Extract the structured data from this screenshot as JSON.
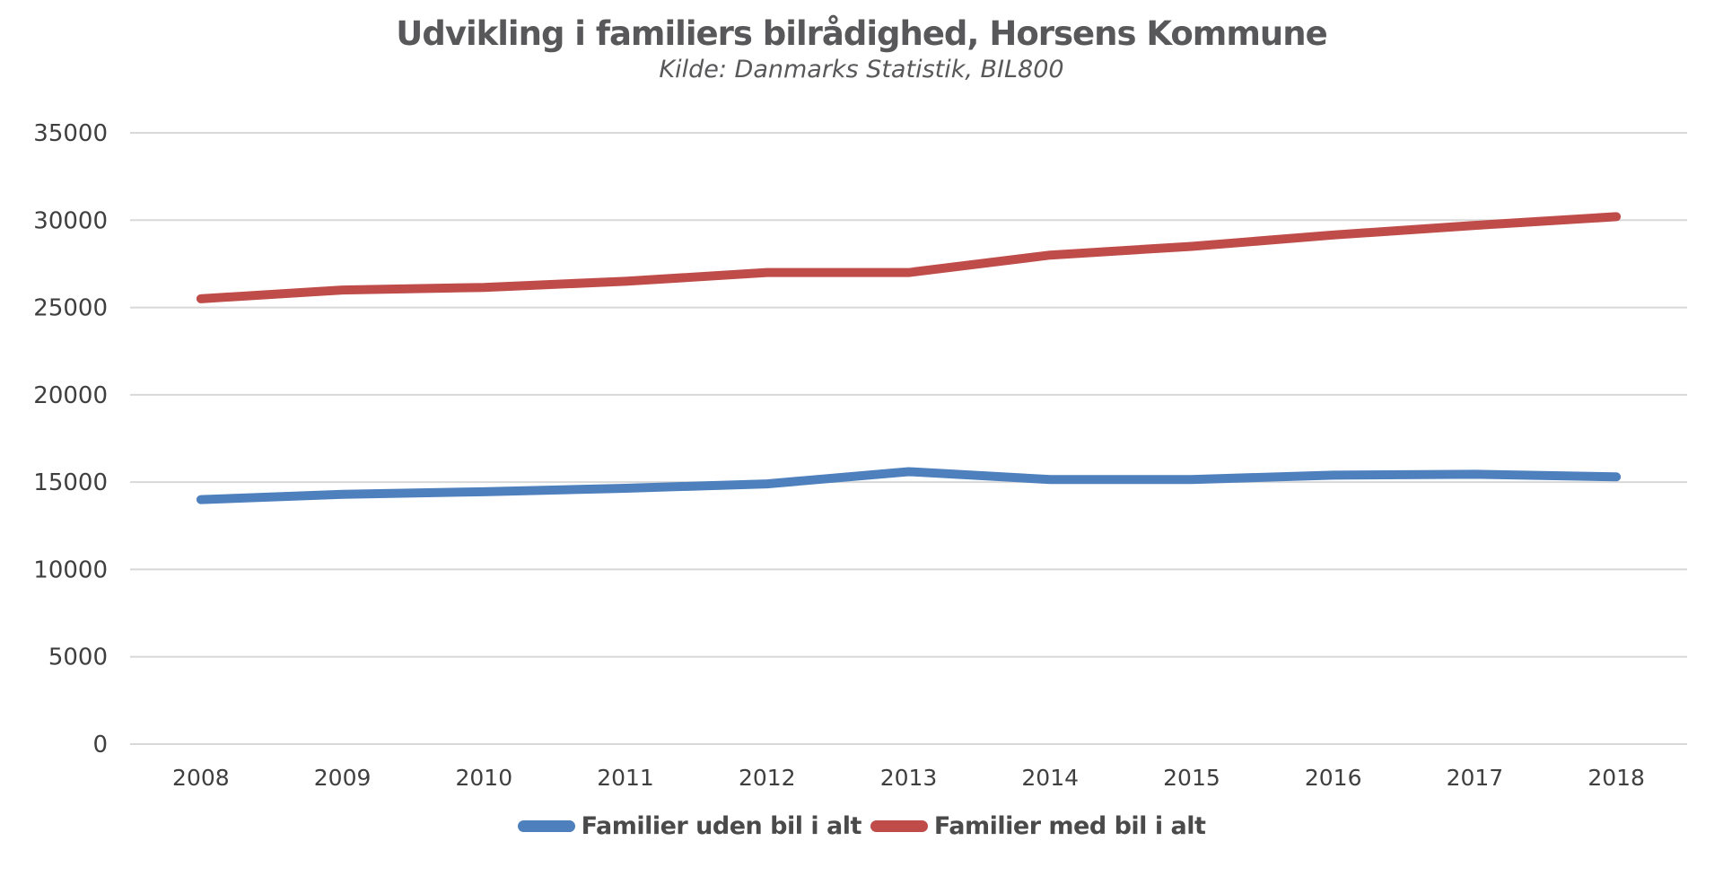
{
  "title": "Udvikling i familiers bilrådighed, Horsens Kommune",
  "subtitle": "Kilde: Danmarks Statistik, BIL800",
  "colors": {
    "background": "#ffffff",
    "gridline": "#d8d8d8",
    "title_text": "#58585a",
    "tick_text": "#3f3f3f",
    "series_blue": "#4e80bd",
    "series_red": "#bf4c49"
  },
  "legend": {
    "items": [
      {
        "label": "Familier uden bil i alt",
        "color": "#4e80bd"
      },
      {
        "label": "Familier med bil i alt",
        "color": "#bf4c49"
      }
    ]
  },
  "chart_data": {
    "type": "line",
    "title": "Udvikling i familiers bilrådighed, Horsens Kommune",
    "subtitle": "Kilde: Danmarks Statistik, BIL800",
    "categories": [
      "2008",
      "2009",
      "2010",
      "2011",
      "2012",
      "2013",
      "2014",
      "2015",
      "2016",
      "2017",
      "2018"
    ],
    "series": [
      {
        "name": "Familier uden bil i alt",
        "color": "#4e80bd",
        "values": [
          14000,
          14300,
          14450,
          14650,
          14900,
          15600,
          15150,
          15150,
          15400,
          15450,
          15300
        ]
      },
      {
        "name": "Familier med bil i alt",
        "color": "#bf4c49",
        "values": [
          25500,
          26000,
          26150,
          26500,
          27000,
          27000,
          28000,
          28500,
          29150,
          29700,
          30200
        ]
      }
    ],
    "xlabel": "",
    "ylabel": "",
    "ylim": [
      0,
      35000
    ],
    "yticks": [
      0,
      5000,
      10000,
      15000,
      20000,
      25000,
      30000,
      35000
    ],
    "grid": true,
    "legend_position": "bottom"
  }
}
